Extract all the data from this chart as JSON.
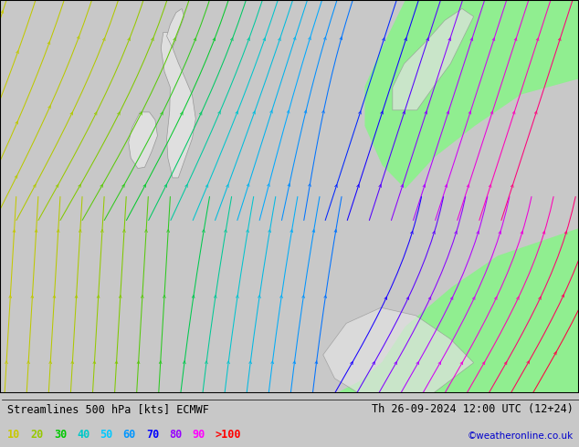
{
  "title_left": "Streamlines 500 hPa [kts] ECMWF",
  "title_right": "Th 26-09-2024 12:00 UTC (12+24)",
  "credit": "©weatheronline.co.uk",
  "legend_values": [
    "10",
    "20",
    "30",
    "40",
    "50",
    "60",
    "70",
    "80",
    "90",
    ">100"
  ],
  "legend_colors": [
    "#c8c800",
    "#96c800",
    "#00c800",
    "#00c8c8",
    "#00c8ff",
    "#0096ff",
    "#0000ff",
    "#9600ff",
    "#ff00ff",
    "#ff0000"
  ],
  "bg_color": "#d8d8d8",
  "land_color": "#e8e8e8",
  "green_region_color": "#90ee90",
  "figsize": [
    6.34,
    4.9
  ],
  "dpi": 100
}
